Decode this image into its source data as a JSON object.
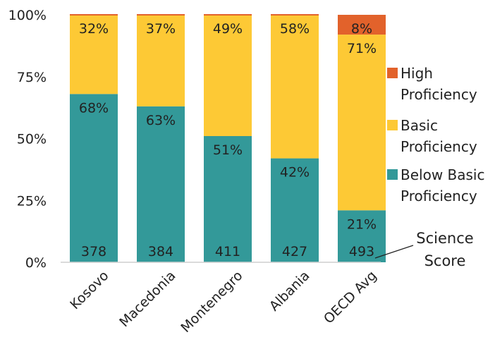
{
  "chart_data": {
    "type": "bar",
    "stacked": true,
    "categories": [
      "Kosovo",
      "Macedonia",
      "Montenegro",
      "Albania",
      "OECD Avg"
    ],
    "series": [
      {
        "name": "Below Basic Proficiency",
        "color": "#339999",
        "values": [
          68,
          63,
          51,
          42,
          21
        ],
        "labels": [
          "68%",
          "63%",
          "51%",
          "42%",
          "21%"
        ]
      },
      {
        "name": "Basic Proficiency",
        "color": "#FDC935",
        "values": [
          32,
          37,
          49,
          58,
          71
        ],
        "labels": [
          "32%",
          "37%",
          "49%",
          "58%",
          "71%"
        ]
      },
      {
        "name": "High Proficiency",
        "color": "#E2622B",
        "values": [
          0,
          0,
          0,
          0,
          8
        ],
        "labels": [
          "",
          "",
          "",
          "",
          "8%"
        ]
      }
    ],
    "science_scores": [
      "378",
      "384",
      "411",
      "427",
      "493"
    ],
    "y_ticks": [
      "0%",
      "25%",
      "50%",
      "75%",
      "100%"
    ],
    "ylim": [
      0,
      100
    ],
    "legend_position": "right",
    "legend_lines": [
      [
        "High",
        "Proficiency"
      ],
      [
        "Basic",
        "Proficiency"
      ],
      [
        "Below Basic",
        "Proficiency"
      ]
    ],
    "annotation": {
      "lines": [
        "Science",
        "Score"
      ]
    },
    "grid": false,
    "xlabel": "",
    "ylabel": "",
    "title": ""
  }
}
